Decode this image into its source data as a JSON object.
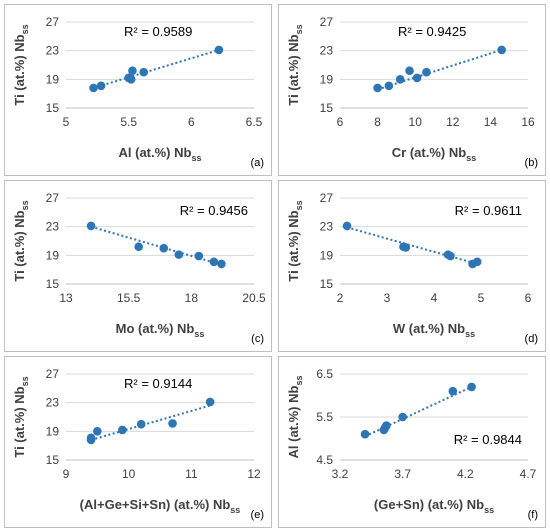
{
  "chart_data": [
    {
      "type": "scatter",
      "panel_label": "(a)",
      "xlabel_main": "Al (at.%) Nb",
      "xlabel_sub": "ss",
      "ylabel_main": "Ti (at.%) Nb",
      "ylabel_sub": "ss",
      "xlim": [
        5,
        6.5
      ],
      "ylim": [
        15,
        27
      ],
      "xticks": [
        5,
        5.5,
        6,
        6.5
      ],
      "yticks": [
        15,
        19,
        23,
        27
      ],
      "xtick_labels": [
        "5",
        "5.5",
        "6",
        "6.5"
      ],
      "ytick_labels": [
        "15",
        "19",
        "23",
        "27"
      ],
      "r2": "R² = 0.9589",
      "r2_position": "top-left",
      "points": [
        [
          5.22,
          17.8
        ],
        [
          5.28,
          18.1
        ],
        [
          5.5,
          19.2
        ],
        [
          5.52,
          19.0
        ],
        [
          5.53,
          20.2
        ],
        [
          5.62,
          20.0
        ],
        [
          6.22,
          23.1
        ]
      ],
      "trend": [
        [
          5.22,
          17.8
        ],
        [
          6.22,
          23.1
        ]
      ]
    },
    {
      "type": "scatter",
      "panel_label": "(b)",
      "xlabel_main": "Cr (at.%) Nb",
      "xlabel_sub": "ss",
      "ylabel_main": "Ti (at.%) Nb",
      "ylabel_sub": "ss",
      "xlim": [
        6,
        16
      ],
      "ylim": [
        15,
        27
      ],
      "xticks": [
        6,
        8,
        10,
        12,
        14,
        16
      ],
      "yticks": [
        15,
        19,
        23,
        27
      ],
      "xtick_labels": [
        "6",
        "8",
        "10",
        "12",
        "14",
        "16"
      ],
      "ytick_labels": [
        "15",
        "19",
        "23",
        "27"
      ],
      "r2": "R² = 0.9425",
      "r2_position": "top-left",
      "points": [
        [
          8.0,
          17.8
        ],
        [
          8.6,
          18.1
        ],
        [
          9.2,
          19.0
        ],
        [
          9.7,
          20.2
        ],
        [
          10.1,
          19.2
        ],
        [
          10.6,
          20.0
        ],
        [
          14.6,
          23.1
        ]
      ],
      "trend": [
        [
          8.0,
          17.6
        ],
        [
          14.6,
          23.1
        ]
      ]
    },
    {
      "type": "scatter",
      "panel_label": "(c)",
      "xlabel_main": "Mo (at.%) Nb",
      "xlabel_sub": "ss",
      "ylabel_main": "Ti (at.%) Nb",
      "ylabel_sub": "ss",
      "xlim": [
        13,
        20.5
      ],
      "ylim": [
        15,
        27
      ],
      "xticks": [
        13,
        15.5,
        18,
        20.5
      ],
      "yticks": [
        15,
        19,
        23,
        27
      ],
      "xtick_labels": [
        "13",
        "15.5",
        "18",
        "20.5"
      ],
      "ytick_labels": [
        "15",
        "19",
        "23",
        "27"
      ],
      "r2": "R² = 0.9456",
      "r2_position": "top-right",
      "points": [
        [
          14.0,
          23.1
        ],
        [
          15.9,
          20.2
        ],
        [
          16.9,
          20.0
        ],
        [
          17.5,
          19.1
        ],
        [
          18.3,
          18.9
        ],
        [
          18.9,
          18.1
        ],
        [
          19.2,
          17.8
        ]
      ],
      "trend": [
        [
          14.0,
          23.0
        ],
        [
          19.2,
          17.7
        ]
      ]
    },
    {
      "type": "scatter",
      "panel_label": "(d)",
      "xlabel_main": "W (at.%) Nb",
      "xlabel_sub": "ss",
      "ylabel_main": "Ti (at.%) Nb",
      "ylabel_sub": "ss",
      "xlim": [
        2,
        6
      ],
      "ylim": [
        15,
        27
      ],
      "xticks": [
        2,
        3,
        4,
        5,
        6
      ],
      "yticks": [
        15,
        19,
        23,
        27
      ],
      "xtick_labels": [
        "2",
        "3",
        "4",
        "5",
        "6"
      ],
      "ytick_labels": [
        "15",
        "19",
        "23",
        "27"
      ],
      "r2": "R² = 0.9611",
      "r2_position": "top-right",
      "points": [
        [
          2.15,
          23.1
        ],
        [
          3.35,
          20.2
        ],
        [
          3.4,
          20.1
        ],
        [
          4.3,
          19.1
        ],
        [
          4.35,
          18.9
        ],
        [
          4.82,
          17.8
        ],
        [
          4.92,
          18.1
        ]
      ],
      "trend": [
        [
          2.15,
          22.9
        ],
        [
          4.92,
          17.8
        ]
      ]
    },
    {
      "type": "scatter",
      "panel_label": "(e)",
      "xlabel_main": "(Al+Ge+Si+Sn) (at.%) Nb",
      "xlabel_sub": "ss",
      "ylabel_main": "Ti (at.%) Nb",
      "ylabel_sub": "ss",
      "xlim": [
        9,
        12
      ],
      "ylim": [
        15,
        27
      ],
      "xticks": [
        9,
        10,
        11,
        12
      ],
      "yticks": [
        15,
        19,
        23,
        27
      ],
      "xtick_labels": [
        "9",
        "10",
        "11",
        "12"
      ],
      "ytick_labels": [
        "15",
        "19",
        "23",
        "27"
      ],
      "r2": "R² = 0.9144",
      "r2_position": "top-left",
      "points": [
        [
          9.4,
          17.8
        ],
        [
          9.4,
          18.1
        ],
        [
          9.5,
          19.0
        ],
        [
          9.9,
          19.2
        ],
        [
          10.2,
          20.0
        ],
        [
          10.7,
          20.1
        ],
        [
          11.3,
          23.1
        ]
      ],
      "trend": [
        [
          9.4,
          17.8
        ],
        [
          11.3,
          22.6
        ]
      ]
    },
    {
      "type": "scatter",
      "panel_label": "(f)",
      "xlabel_main": "(Ge+Sn) (at.%) Nb",
      "xlabel_sub": "ss",
      "ylabel_main": "Al (at.%) Nb",
      "ylabel_sub": "ss",
      "xlim": [
        3.2,
        4.7
      ],
      "ylim": [
        4.5,
        6.5
      ],
      "xticks": [
        3.2,
        3.7,
        4.2,
        4.7
      ],
      "yticks": [
        4.5,
        5.5,
        6.5
      ],
      "xtick_labels": [
        "3.2",
        "3.7",
        "4.2",
        "4.7"
      ],
      "ytick_labels": [
        "4.5",
        "5.5",
        "6.5"
      ],
      "r2": "R² = 0.9844",
      "r2_position": "bottom-right",
      "points": [
        [
          3.4,
          5.1
        ],
        [
          3.55,
          5.2
        ],
        [
          3.56,
          5.25
        ],
        [
          3.57,
          5.3
        ],
        [
          3.7,
          5.5
        ],
        [
          4.1,
          6.1
        ],
        [
          4.25,
          6.2
        ]
      ],
      "trend": [
        [
          3.4,
          5.05
        ],
        [
          4.25,
          6.2
        ]
      ]
    }
  ]
}
